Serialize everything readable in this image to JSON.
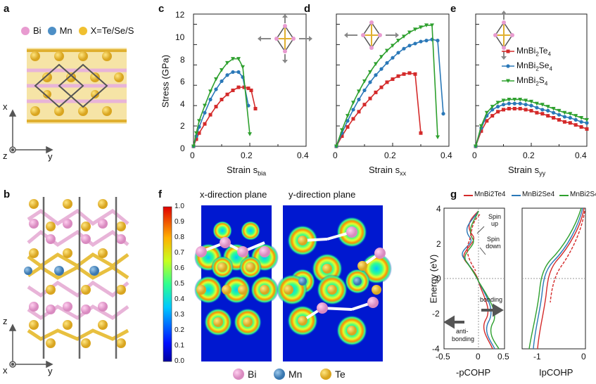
{
  "panels": {
    "a": "a",
    "b": "b",
    "c": "c",
    "d": "d",
    "e": "e",
    "f": "f",
    "g": "g"
  },
  "panel_a": {
    "legend": [
      {
        "label": "Bi",
        "color": "#e89bd0"
      },
      {
        "label": "Mn",
        "color": "#4d8fc6"
      },
      {
        "label": "X=Te/Se/S",
        "color": "#f0c030"
      }
    ],
    "axis_up": "x",
    "axis_right": "y",
    "axis_out": "z"
  },
  "panel_b": {
    "axis_up": "z",
    "axis_right": "y",
    "axis_out": "x"
  },
  "stress_plots": {
    "ylabel": "Stress (GPa)",
    "yticks": [
      "0",
      "2",
      "4",
      "6",
      "8",
      "10",
      "12"
    ],
    "xticks": [
      "0",
      "0.2",
      "0.4"
    ],
    "legend": [
      {
        "label": "MnBi",
        "sub": "2",
        "mid": "Te",
        "sub2": "4",
        "color": "#d42a2a",
        "marker": "square"
      },
      {
        "label": "MnBi",
        "sub": "2",
        "mid": "Se",
        "sub2": "4",
        "color": "#2a78b8",
        "marker": "circle"
      },
      {
        "label": "MnBi",
        "sub": "2",
        "mid": "S",
        "sub2": "4",
        "color": "#2ea02e",
        "marker": "triangle"
      }
    ],
    "xlabels": [
      {
        "main": "Strain s",
        "sub": "bia"
      },
      {
        "main": "Strain s",
        "sub": "xx"
      },
      {
        "main": "Strain s",
        "sub": "yy"
      }
    ]
  },
  "panel_f": {
    "titles": [
      "x-direction plane",
      "y-direction plane"
    ],
    "colorbar_ticks": [
      "1.0",
      "0.9",
      "0.8",
      "0.7",
      "0.6",
      "0.5",
      "0.4",
      "0.3",
      "0.2",
      "0.1",
      "0.0"
    ],
    "legend": [
      {
        "label": "Bi",
        "color": "#e89bd0"
      },
      {
        "label": "Mn",
        "color": "#4d8fc6"
      },
      {
        "label": "Te",
        "color": "#f0c030"
      }
    ]
  },
  "panel_g": {
    "legend": [
      "MnBi2Te4",
      "MnBi2Se4",
      "MnBi2S4"
    ],
    "legend_colors": [
      "#d42a2a",
      "#2a78b8",
      "#2ea02e"
    ],
    "ylabel": "Energy (eV)",
    "yticks": [
      "4",
      "2",
      "0",
      "-2",
      "-4"
    ],
    "xticks_left": [
      "-0.5",
      "0",
      "0.5"
    ],
    "xticks_right": [
      "-1",
      "0"
    ],
    "xlabel_left": "-pCOHP",
    "xlabel_right": "IpCOHP",
    "annotations": {
      "spin_up": "Spin up",
      "spin_down": "Spin down",
      "bonding": "bonding",
      "anti": "anti-",
      "anti2": "bonding"
    }
  },
  "chart_data": [
    {
      "type": "line",
      "title": "",
      "xlabel": "Strain s_bia",
      "ylabel": "Stress (GPa)",
      "xlim": [
        0,
        0.4
      ],
      "ylim": [
        0,
        13
      ],
      "series": [
        {
          "name": "MnBi2Te4",
          "x": [
            0,
            0.01,
            0.02,
            0.04,
            0.06,
            0.08,
            0.1,
            0.12,
            0.14,
            0.16,
            0.18,
            0.195,
            0.205,
            0.22
          ],
          "y": [
            0,
            0.7,
            1.3,
            2.2,
            3.1,
            3.9,
            4.6,
            5.1,
            5.5,
            5.8,
            5.8,
            5.7,
            5.5,
            3.7
          ]
        },
        {
          "name": "MnBi2Se4",
          "x": [
            0,
            0.01,
            0.02,
            0.04,
            0.06,
            0.08,
            0.1,
            0.12,
            0.14,
            0.16,
            0.175,
            0.195
          ],
          "y": [
            0,
            1.0,
            1.9,
            3.3,
            4.6,
            5.6,
            6.4,
            7.0,
            7.3,
            7.3,
            6.8,
            4.0
          ]
        },
        {
          "name": "MnBi2S4",
          "x": [
            0,
            0.01,
            0.02,
            0.04,
            0.06,
            0.08,
            0.1,
            0.12,
            0.14,
            0.16,
            0.175,
            0.2
          ],
          "y": [
            0,
            1.3,
            2.5,
            4.0,
            5.4,
            6.6,
            7.5,
            8.2,
            8.6,
            8.6,
            7.8,
            1.2
          ]
        }
      ]
    },
    {
      "type": "line",
      "title": "",
      "xlabel": "Strain s_xx",
      "ylabel": "",
      "xlim": [
        0,
        0.4
      ],
      "ylim": [
        0,
        13
      ],
      "series": [
        {
          "name": "MnBi2Te4",
          "x": [
            0,
            0.02,
            0.04,
            0.06,
            0.08,
            0.1,
            0.12,
            0.14,
            0.16,
            0.18,
            0.2,
            0.22,
            0.24,
            0.26,
            0.28,
            0.3
          ],
          "y": [
            0,
            1.0,
            1.9,
            2.7,
            3.4,
            4.1,
            4.7,
            5.3,
            5.8,
            6.3,
            6.6,
            6.9,
            7.1,
            7.2,
            7.1,
            1.3
          ]
        },
        {
          "name": "MnBi2Se4",
          "x": [
            0,
            0.02,
            0.04,
            0.06,
            0.08,
            0.1,
            0.12,
            0.14,
            0.16,
            0.18,
            0.2,
            0.22,
            0.24,
            0.26,
            0.28,
            0.3,
            0.32,
            0.34,
            0.36,
            0.38
          ],
          "y": [
            0,
            1.3,
            2.5,
            3.6,
            4.6,
            5.5,
            6.3,
            7.0,
            7.6,
            8.2,
            8.7,
            9.2,
            9.6,
            9.9,
            10.1,
            10.3,
            10.4,
            10.5,
            10.4,
            3.2
          ]
        },
        {
          "name": "MnBi2S4",
          "x": [
            0,
            0.02,
            0.04,
            0.06,
            0.08,
            0.1,
            0.12,
            0.14,
            0.16,
            0.18,
            0.2,
            0.22,
            0.24,
            0.26,
            0.28,
            0.3,
            0.32,
            0.34,
            0.36
          ],
          "y": [
            0,
            1.6,
            3.0,
            4.3,
            5.4,
            6.4,
            7.3,
            8.1,
            8.8,
            9.4,
            9.9,
            10.4,
            10.8,
            11.2,
            11.5,
            11.7,
            11.9,
            11.9,
            0.9
          ]
        }
      ]
    },
    {
      "type": "line",
      "title": "",
      "xlabel": "Strain s_yy",
      "ylabel": "",
      "xlim": [
        0,
        0.4
      ],
      "ylim": [
        0,
        13
      ],
      "series": [
        {
          "name": "MnBi2Te4",
          "x": [
            0,
            0.02,
            0.04,
            0.06,
            0.08,
            0.1,
            0.12,
            0.14,
            0.16,
            0.18,
            0.2,
            0.22,
            0.24,
            0.26,
            0.28,
            0.3,
            0.32,
            0.34,
            0.36,
            0.38,
            0.4
          ],
          "y": [
            0,
            1.5,
            2.5,
            3.0,
            3.4,
            3.6,
            3.7,
            3.7,
            3.7,
            3.6,
            3.5,
            3.3,
            3.2,
            3.0,
            2.8,
            2.6,
            2.4,
            2.3,
            2.1,
            1.9,
            1.7
          ]
        },
        {
          "name": "MnBi2Se4",
          "x": [
            0,
            0.02,
            0.04,
            0.06,
            0.08,
            0.1,
            0.12,
            0.14,
            0.16,
            0.18,
            0.2,
            0.22,
            0.24,
            0.26,
            0.28,
            0.3,
            0.32,
            0.34,
            0.36,
            0.38,
            0.4
          ],
          "y": [
            0,
            1.8,
            3.0,
            3.6,
            3.9,
            4.1,
            4.2,
            4.2,
            4.2,
            4.1,
            4.0,
            3.8,
            3.6,
            3.5,
            3.3,
            3.1,
            2.9,
            2.8,
            2.6,
            2.4,
            2.3
          ]
        },
        {
          "name": "MnBi2S4",
          "x": [
            0,
            0.02,
            0.04,
            0.06,
            0.08,
            0.1,
            0.12,
            0.14,
            0.16,
            0.18,
            0.2,
            0.22,
            0.24,
            0.26,
            0.28,
            0.3,
            0.32,
            0.34,
            0.36,
            0.38,
            0.4
          ],
          "y": [
            0,
            2.0,
            3.3,
            3.9,
            4.3,
            4.5,
            4.6,
            4.6,
            4.6,
            4.5,
            4.4,
            4.2,
            4.1,
            3.9,
            3.7,
            3.5,
            3.3,
            3.2,
            3.0,
            2.8,
            2.6
          ]
        }
      ]
    }
  ]
}
